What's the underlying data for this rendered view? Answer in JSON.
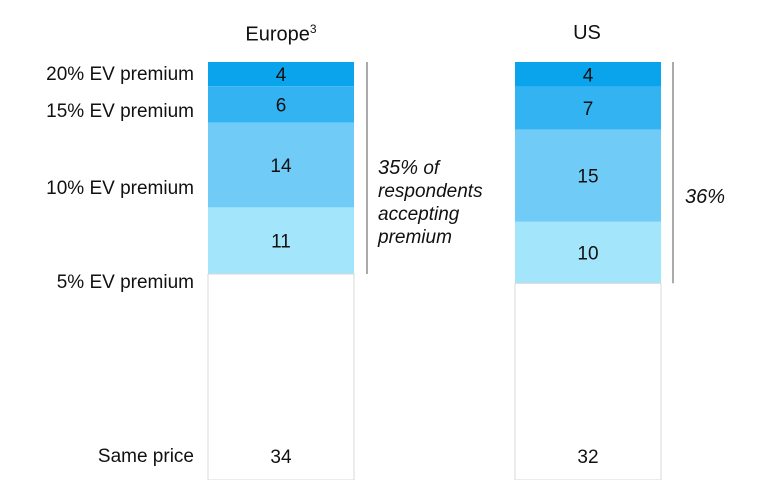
{
  "chart_data": {
    "type": "bar",
    "stacked": true,
    "categories": [
      "Europe",
      "US"
    ],
    "category_superscripts": [
      "3",
      ""
    ],
    "segments": [
      "20% EV premium",
      "15% EV premium",
      "10% EV premium",
      "5% EV premium",
      "Same price"
    ],
    "series": [
      {
        "name": "20% EV premium",
        "values": [
          4,
          4
        ],
        "color": "#0aa4ec"
      },
      {
        "name": "15% EV premium",
        "values": [
          6,
          7
        ],
        "color": "#34b3f3"
      },
      {
        "name": "10% EV premium",
        "values": [
          14,
          15
        ],
        "color": "#70cbf7"
      },
      {
        "name": "5% EV premium",
        "values": [
          11,
          10
        ],
        "color": "#a3e5fb"
      },
      {
        "name": "Same price",
        "values": [
          34,
          32
        ],
        "color": "#ffffff"
      }
    ],
    "annotations": [
      {
        "category": "Europe",
        "value": "35%",
        "text": "of respondents accepting premium"
      },
      {
        "category": "US",
        "value": "36%",
        "text": ""
      }
    ]
  }
}
